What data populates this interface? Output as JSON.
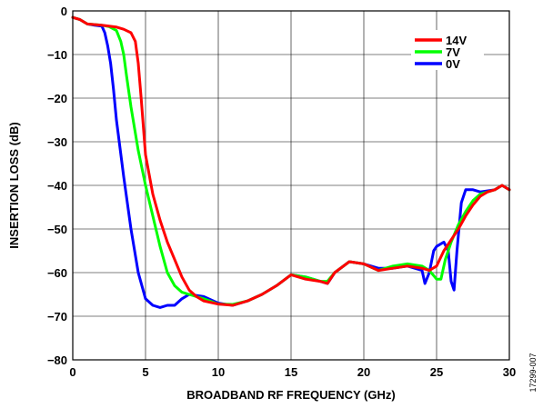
{
  "chart_data": {
    "type": "line",
    "xlabel": "BROADBAND RF FREQUENCY (GHz)",
    "ylabel": "INSERTION LOSS (dB)",
    "xlim": [
      0,
      30
    ],
    "ylim": [
      -80,
      0
    ],
    "xticks": [
      0,
      5,
      10,
      15,
      20,
      25,
      30
    ],
    "yticks": [
      0,
      -10,
      -20,
      -30,
      -40,
      -50,
      -60,
      -70,
      -80
    ],
    "grid": true,
    "legend_position": "top-right",
    "series": [
      {
        "name": "14V",
        "color": "#ff0000",
        "x": [
          0,
          0.5,
          1,
          2,
          3,
          3.5,
          4,
          4.3,
          4.5,
          4.7,
          5,
          5.5,
          6,
          6.5,
          7,
          7.5,
          8,
          8.5,
          9,
          10,
          11,
          12,
          13,
          14,
          15,
          16,
          17,
          17.5,
          18,
          19,
          20,
          21,
          22,
          23,
          24,
          24.5,
          25,
          25.5,
          26,
          26.5,
          27,
          27.5,
          28,
          28.5,
          29,
          29.5,
          30
        ],
        "y": [
          -1.5,
          -2,
          -3,
          -3.3,
          -3.7,
          -4.2,
          -5,
          -7,
          -12,
          -20,
          -33,
          -42,
          -48,
          -53,
          -57,
          -61,
          -64,
          -65.5,
          -66.5,
          -67.2,
          -67.5,
          -66.5,
          -65,
          -63,
          -60.5,
          -61.5,
          -62,
          -62.5,
          -60,
          -57.5,
          -58,
          -59.5,
          -59,
          -58.5,
          -59,
          -59.5,
          -58.5,
          -55,
          -52.5,
          -50,
          -47,
          -44.5,
          -42.5,
          -41.5,
          -41,
          -40,
          -41
        ]
      },
      {
        "name": "7V",
        "color": "#00ff00",
        "x": [
          0,
          0.5,
          1,
          2,
          2.5,
          3,
          3.3,
          3.5,
          3.7,
          4,
          4.5,
          5,
          5.5,
          6,
          6.5,
          7,
          7.5,
          8,
          9,
          10,
          11,
          12,
          13,
          14,
          15,
          16,
          17,
          17.5,
          18,
          19,
          20,
          21,
          22,
          23,
          24,
          24.5,
          25,
          25.3,
          25.6,
          26,
          26.5,
          27,
          27.5,
          28,
          29,
          29.5,
          30
        ],
        "y": [
          -1.5,
          -2,
          -3,
          -3.3,
          -3.6,
          -4.5,
          -7,
          -10,
          -15,
          -22,
          -32,
          -40,
          -47,
          -54,
          -60,
          -63,
          -64.5,
          -65,
          -66,
          -67.2,
          -67.3,
          -66.5,
          -65,
          -63,
          -60.5,
          -61,
          -62,
          -62,
          -60,
          -57.5,
          -58,
          -59.5,
          -58.5,
          -58,
          -58.5,
          -59.5,
          -61.5,
          -61.5,
          -57,
          -53,
          -49,
          -46,
          -43.5,
          -42,
          -41,
          -40,
          -41
        ]
      },
      {
        "name": "0V",
        "color": "#0000ff",
        "x": [
          0,
          0.5,
          1,
          1.5,
          2,
          2.2,
          2.4,
          2.6,
          2.8,
          3,
          3.5,
          4,
          4.5,
          5,
          5.5,
          6,
          6.5,
          7,
          7.5,
          8,
          9,
          10,
          11,
          12,
          13,
          14,
          15,
          16,
          17,
          17.5,
          18,
          19,
          20,
          21,
          22,
          23,
          24,
          24.2,
          24.5,
          24.8,
          25,
          25.5,
          25.8,
          26,
          26.2,
          26.4,
          26.7,
          27,
          27.5,
          28,
          29,
          29.5,
          30
        ],
        "y": [
          -1.5,
          -2,
          -3,
          -3.3,
          -3.5,
          -5,
          -8,
          -12,
          -18,
          -25,
          -38,
          -50,
          -60,
          -66,
          -67.5,
          -68,
          -67.5,
          -67.5,
          -66,
          -65,
          -65.5,
          -67,
          -67.5,
          -66.5,
          -65,
          -63,
          -60.5,
          -61,
          -62,
          -62.5,
          -60,
          -57.5,
          -58,
          -59,
          -59,
          -58.5,
          -59.5,
          -62.5,
          -60,
          -55,
          -54,
          -53,
          -55,
          -62,
          -64,
          -55,
          -44,
          -41,
          -41,
          -41.5,
          -41,
          -40,
          -41
        ]
      }
    ]
  },
  "figure_id": "17299-007"
}
